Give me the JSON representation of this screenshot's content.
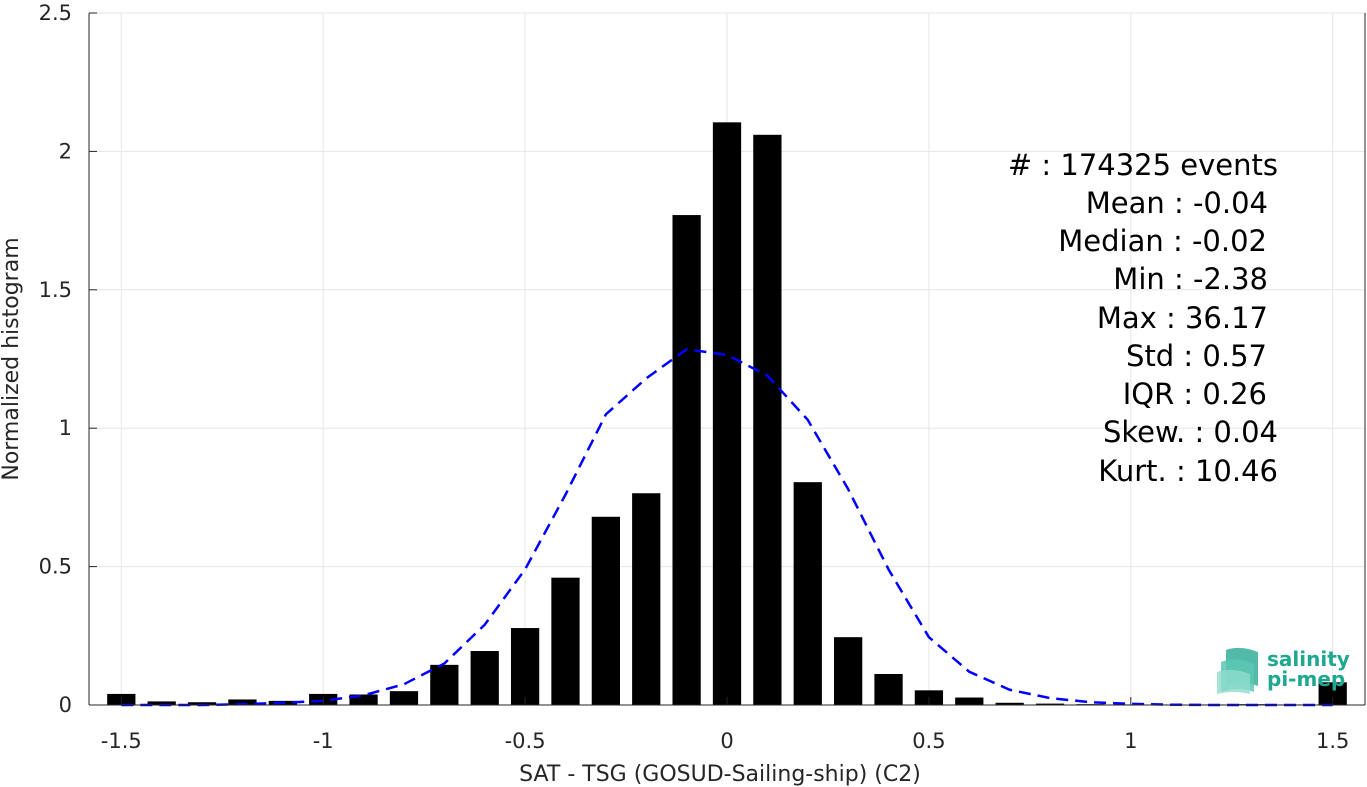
{
  "chart_data": {
    "type": "bar",
    "xlabel": "SAT - TSG (GOSUD-Sailing-ship) (C2)",
    "ylabel": "Normalized histogram",
    "xlim": [
      -1.58,
      1.58
    ],
    "ylim": [
      0,
      2.5
    ],
    "xticks": [
      -1.5,
      -1,
      -0.5,
      0,
      0.5,
      1,
      1.5
    ],
    "xtick_labels": [
      "-1.5",
      "-1",
      "-0.5",
      "0",
      "0.5",
      "1",
      "1.5"
    ],
    "yticks": [
      0,
      0.5,
      1,
      1.5,
      2,
      2.5
    ],
    "ytick_labels": [
      "0",
      "0.5",
      "1",
      "1.5",
      "2",
      "2.5"
    ],
    "grid": true,
    "bar_width": 0.07,
    "bars": {
      "x": [
        -1.5,
        -1.4,
        -1.3,
        -1.2,
        -1.1,
        -1.0,
        -0.9,
        -0.8,
        -0.7,
        -0.6,
        -0.5,
        -0.4,
        -0.3,
        -0.2,
        -0.1,
        0.0,
        0.1,
        0.2,
        0.3,
        0.4,
        0.5,
        0.6,
        0.7,
        0.8,
        0.9,
        1.0,
        1.1,
        1.2,
        1.3,
        1.4,
        1.5
      ],
      "values": [
        0.04,
        0.013,
        0.01,
        0.02,
        0.015,
        0.04,
        0.038,
        0.05,
        0.145,
        0.195,
        0.278,
        0.46,
        0.68,
        0.765,
        1.77,
        2.105,
        2.06,
        0.805,
        0.245,
        0.112,
        0.053,
        0.027,
        0.008,
        0.005,
        0.003,
        0.002,
        0.002,
        0.002,
        0.003,
        0.002,
        0.082
      ],
      "color": "#000000"
    },
    "fit_curve": {
      "style": "dashed",
      "color": "#0000ff",
      "x": [
        -1.5,
        -1.4,
        -1.3,
        -1.2,
        -1.1,
        -1.0,
        -0.9,
        -0.8,
        -0.7,
        -0.6,
        -0.5,
        -0.4,
        -0.3,
        -0.2,
        -0.1,
        0.0,
        0.1,
        0.2,
        0.3,
        0.4,
        0.5,
        0.6,
        0.7,
        0.8,
        0.9,
        1.0,
        1.1,
        1.2,
        1.3,
        1.4,
        1.5
      ],
      "y": [
        0.0,
        0.0,
        0.0,
        0.003,
        0.008,
        0.015,
        0.035,
        0.075,
        0.15,
        0.29,
        0.49,
        0.76,
        1.05,
        1.18,
        1.285,
        1.265,
        1.19,
        1.03,
        0.78,
        0.49,
        0.245,
        0.12,
        0.055,
        0.025,
        0.01,
        0.004,
        0.001,
        0.0,
        0.0,
        0.0,
        0.0
      ]
    },
    "annotations": [
      "#  : 174325 events",
      "Mean : -0.04",
      "Median : -0.02",
      "Min : -2.38",
      "Max : 36.17",
      "Std : 0.57",
      "IQR : 0.26",
      "Skew. : 0.04",
      "Kurt. : 10.46"
    ]
  },
  "logo": {
    "line1": "salinity",
    "line2": "pi-mep"
  }
}
